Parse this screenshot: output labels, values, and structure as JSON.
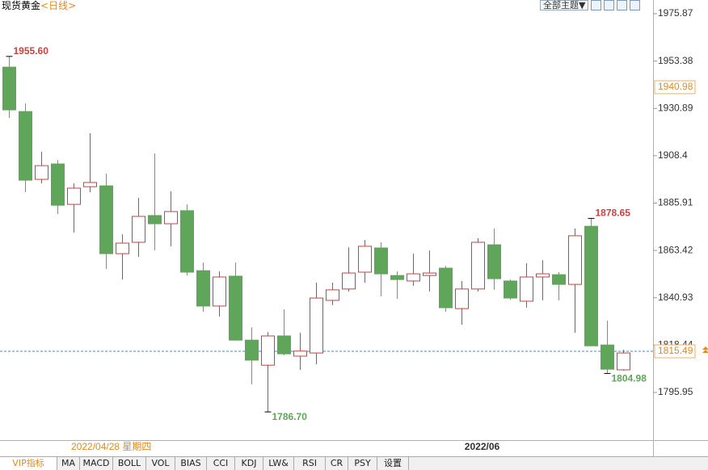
{
  "header": {
    "title": "现货黄金",
    "period": "<日线>",
    "theme_button": "全部主题▼"
  },
  "tabs": [
    "VIP指标",
    "MA",
    "MACD",
    "BOLL",
    "VOL",
    "BIAS",
    "CCI",
    "KDJ",
    "LW&",
    "RSI",
    "CR",
    "PSY",
    "设置"
  ],
  "chart_data": {
    "type": "candlestick",
    "categories": [
      null,
      null,
      null,
      null,
      null,
      null,
      null,
      null,
      null,
      null,
      null,
      null,
      null,
      null,
      null,
      null,
      null,
      null,
      null,
      null,
      null,
      null,
      null,
      null,
      null,
      null,
      null,
      null,
      null,
      "2022/06",
      null,
      null,
      null,
      null,
      null,
      null,
      null,
      null,
      null
    ],
    "open": [
      1950.5,
      1929.4,
      1897.2,
      1904.5,
      1885.3,
      1893.7,
      1894.1,
      1861.9,
      1867.3,
      1880.0,
      1876.1,
      1882.3,
      1853.8,
      1837.0,
      1851.2,
      1820.8,
      1808.9,
      1822.8,
      1813.2,
      1814.7,
      1839.7,
      1845.1,
      1853.1,
      1864.6,
      1851.5,
      1848.9,
      1851.5,
      1855.0,
      1835.8,
      1845.1,
      1866.1,
      1848.9,
      1839.3,
      1850.8,
      1851.9,
      1847.3,
      1874.9,
      1818.5,
      1806.7
    ],
    "close": [
      1930.2,
      1896.8,
      1903.7,
      1884.9,
      1893.0,
      1895.7,
      1861.9,
      1866.9,
      1879.6,
      1876.1,
      1881.9,
      1853.1,
      1837.0,
      1850.8,
      1820.8,
      1811.3,
      1822.8,
      1814.3,
      1815.6,
      1840.8,
      1844.7,
      1852.7,
      1865.4,
      1852.3,
      1849.6,
      1852.3,
      1852.7,
      1836.2,
      1845.1,
      1867.3,
      1850.0,
      1840.8,
      1850.8,
      1852.3,
      1847.3,
      1870.4,
      1818.1,
      1807.0,
      1814.7
    ],
    "high": [
      1955.6,
      1933.3,
      1910.3,
      1906.4,
      1895.3,
      1919.1,
      1899.9,
      1871.1,
      1888.4,
      1909.5,
      1891.5,
      1885.3,
      1857.7,
      1853.5,
      1857.7,
      1826.9,
      1824.6,
      1835.4,
      1824.3,
      1848.1,
      1848.1,
      1864.9,
      1868.4,
      1867.3,
      1853.5,
      1861.9,
      1863.4,
      1856.1,
      1848.9,
      1869.2,
      1873.8,
      1849.6,
      1857.3,
      1858.8,
      1853.1,
      1873.8,
      1878.65,
      1830.1,
      1816.2
    ],
    "low": [
      1926.4,
      1891.1,
      1895.3,
      1880.7,
      1871.9,
      1891.1,
      1854.6,
      1849.6,
      1860.4,
      1863.4,
      1865.4,
      1851.5,
      1834.3,
      1832.0,
      1820.8,
      1799.8,
      1786.7,
      1813.6,
      1806.7,
      1809.3,
      1837.4,
      1843.9,
      1848.1,
      1841.6,
      1840.4,
      1846.6,
      1843.9,
      1834.3,
      1828.1,
      1843.9,
      1844.7,
      1840.0,
      1836.2,
      1839.7,
      1839.7,
      1824.3,
      1818.1,
      1804.98,
      1806.3
    ],
    "high_labels": [
      "1955.60",
      null,
      null,
      null,
      null,
      null,
      null,
      null,
      null,
      null,
      null,
      null,
      null,
      null,
      null,
      null,
      null,
      null,
      null,
      null,
      null,
      null,
      null,
      null,
      null,
      null,
      null,
      null,
      null,
      null,
      null,
      null,
      null,
      null,
      null,
      null,
      "1878.65",
      null,
      null
    ],
    "low_labels": [
      null,
      null,
      null,
      null,
      null,
      null,
      null,
      null,
      null,
      null,
      null,
      null,
      null,
      null,
      null,
      null,
      "1786.70",
      null,
      null,
      null,
      null,
      null,
      null,
      null,
      null,
      null,
      null,
      null,
      null,
      null,
      null,
      null,
      null,
      null,
      null,
      null,
      null,
      "1804.98",
      null
    ],
    "up_color": "#c8423f",
    "down_color": "#5fa55a",
    "ylim": [
      1773.3,
      1982.4
    ],
    "yticks": [
      1795.95,
      1818.44,
      1840.93,
      1863.42,
      1885.91,
      1908.4,
      1930.89,
      1953.38,
      1975.87
    ],
    "price_markers": [
      {
        "value": 1940.98,
        "label": "1940.98"
      },
      {
        "value": 1815.49,
        "label": "1815.49",
        "dashed": true
      }
    ],
    "cursor_label": "2022/04/28 星期四"
  }
}
